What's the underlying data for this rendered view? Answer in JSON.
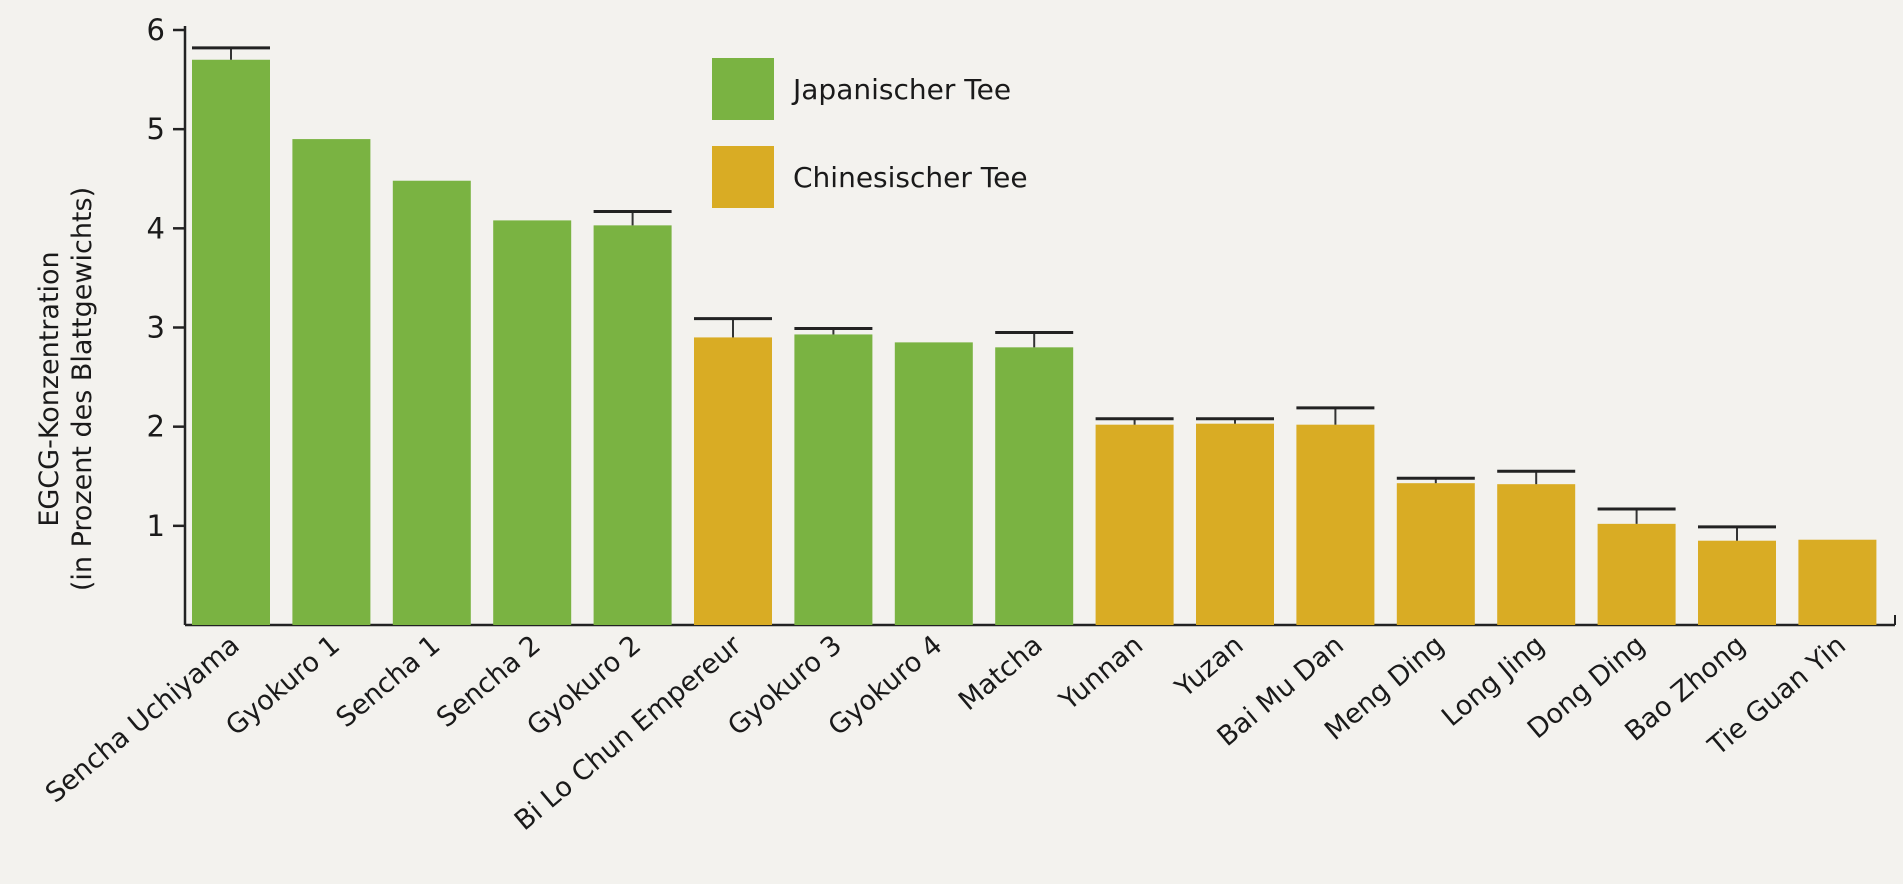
{
  "chart_data": {
    "type": "bar",
    "ylabel": "EGCG-Konzentration",
    "ylabel_sub": "(in Prozent des Blattgewichts)",
    "ylim": [
      0,
      6
    ],
    "yticks": [
      1,
      2,
      3,
      4,
      5,
      6
    ],
    "grid": false,
    "legend_position": "top-center",
    "colors": {
      "Japanischer Tee": "#7ab342",
      "Chinesischer Tee": "#d9ac24"
    },
    "legend": [
      {
        "label": "Japanischer Tee",
        "color": "#7ab342"
      },
      {
        "label": "Chinesischer Tee",
        "color": "#d9ac24"
      }
    ],
    "categories": [
      "Sencha Uchiyama",
      "Gyokuro 1",
      "Sencha 1",
      "Sencha 2",
      "Gyokuro 2",
      "Bi Lo Chun Empereur",
      "Gyokuro 3",
      "Gyokuro 4",
      "Matcha",
      "Yunnan",
      "Yuzan",
      "Bai Mu Dan",
      "Meng Ding",
      "Long Jing",
      "Dong Ding",
      "Bao Zhong",
      "Tie Guan Yin"
    ],
    "groups": [
      "Japanischer Tee",
      "Japanischer Tee",
      "Japanischer Tee",
      "Japanischer Tee",
      "Japanischer Tee",
      "Chinesischer Tee",
      "Japanischer Tee",
      "Japanischer Tee",
      "Japanischer Tee",
      "Chinesischer Tee",
      "Chinesischer Tee",
      "Chinesischer Tee",
      "Chinesischer Tee",
      "Chinesischer Tee",
      "Chinesischer Tee",
      "Chinesischer Tee",
      "Chinesischer Tee"
    ],
    "values": [
      5.7,
      4.9,
      4.48,
      4.08,
      4.03,
      2.9,
      2.93,
      2.85,
      2.8,
      2.02,
      2.03,
      2.02,
      1.43,
      1.42,
      1.02,
      0.85,
      0.86
    ],
    "error_upper": [
      5.82,
      null,
      null,
      null,
      4.17,
      3.09,
      2.99,
      null,
      2.95,
      2.08,
      2.08,
      2.19,
      1.48,
      1.55,
      1.17,
      0.99,
      null
    ]
  }
}
